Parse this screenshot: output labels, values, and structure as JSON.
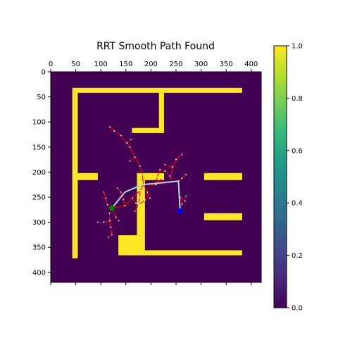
{
  "chart_data": {
    "type": "heatmap",
    "title": "RRT Smooth Path Found",
    "grid_size": [
      420,
      420
    ],
    "value_range": [
      0,
      1
    ],
    "colormap": "viridis",
    "colors": {
      "free": "#440154",
      "wall": "#fde725",
      "tree": "#ff0000",
      "node": "#ffffff",
      "path": "#add8e6",
      "start": "#008000",
      "goal": "#0000ff"
    },
    "x_ticks": [
      "0",
      "50",
      "100",
      "150",
      "200",
      "250",
      "300",
      "350",
      "400"
    ],
    "y_ticks": [
      "0",
      "50",
      "100",
      "150",
      "200",
      "250",
      "300",
      "350",
      "400"
    ],
    "colorbar_ticks": [
      "0.0",
      "0.2",
      "0.4",
      "0.6",
      "0.8",
      "1.0"
    ],
    "walls": [
      [
        43,
        32,
        382,
        42
      ],
      [
        43,
        42,
        54,
        372
      ],
      [
        54,
        202,
        94,
        216
      ],
      [
        162,
        112,
        226,
        122
      ],
      [
        216,
        42,
        226,
        122
      ],
      [
        172,
        202,
        226,
        216
      ],
      [
        172,
        216,
        188,
        326
      ],
      [
        135,
        326,
        188,
        366
      ],
      [
        188,
        356,
        382,
        366
      ],
      [
        306,
        202,
        382,
        216
      ],
      [
        306,
        282,
        382,
        296
      ]
    ],
    "tree_edges": [
      [
        [
          122,
          272
        ],
        [
          148,
          267
        ]
      ],
      [
        [
          148,
          267
        ],
        [
          163,
          252
        ]
      ],
      [
        [
          163,
          252
        ],
        [
          178,
          237
        ]
      ],
      [
        [
          178,
          237
        ],
        [
          185,
          225
        ]
      ],
      [
        [
          185,
          225
        ],
        [
          210,
          225
        ]
      ],
      [
        [
          210,
          225
        ],
        [
          238,
          220
        ]
      ],
      [
        [
          238,
          220
        ],
        [
          255,
          218
        ]
      ],
      [
        [
          255,
          218
        ],
        [
          262,
          212
        ]
      ],
      [
        [
          262,
          212
        ],
        [
          270,
          205
        ]
      ],
      [
        [
          255,
          218
        ],
        [
          258,
          250
        ]
      ],
      [
        [
          258,
          250
        ],
        [
          268,
          258
        ]
      ],
      [
        [
          268,
          258
        ],
        [
          270,
          248
        ]
      ],
      [
        [
          258,
          250
        ],
        [
          262,
          264
        ]
      ],
      [
        [
          262,
          264
        ],
        [
          258,
          278
        ]
      ],
      [
        [
          185,
          225
        ],
        [
          183,
          205
        ]
      ],
      [
        [
          183,
          205
        ],
        [
          178,
          188
        ]
      ],
      [
        [
          178,
          188
        ],
        [
          168,
          170
        ]
      ],
      [
        [
          168,
          170
        ],
        [
          158,
          150
        ]
      ],
      [
        [
          158,
          150
        ],
        [
          152,
          142
        ]
      ],
      [
        [
          152,
          142
        ],
        [
          140,
          127
        ]
      ],
      [
        [
          140,
          127
        ],
        [
          127,
          118
        ]
      ],
      [
        [
          127,
          118
        ],
        [
          118,
          110
        ]
      ],
      [
        [
          152,
          142
        ],
        [
          160,
          135
        ]
      ],
      [
        [
          168,
          170
        ],
        [
          158,
          178
        ]
      ],
      [
        [
          210,
          225
        ],
        [
          212,
          210
        ]
      ],
      [
        [
          212,
          210
        ],
        [
          218,
          195
        ]
      ],
      [
        [
          218,
          195
        ],
        [
          228,
          198
        ]
      ],
      [
        [
          228,
          198
        ],
        [
          238,
          208
        ]
      ],
      [
        [
          210,
          225
        ],
        [
          222,
          212
        ]
      ],
      [
        [
          148,
          267
        ],
        [
          145,
          255
        ]
      ],
      [
        [
          145,
          255
        ],
        [
          140,
          240
        ]
      ],
      [
        [
          140,
          240
        ],
        [
          133,
          232
        ]
      ],
      [
        [
          163,
          252
        ],
        [
          170,
          262
        ]
      ],
      [
        [
          170,
          262
        ],
        [
          175,
          268
        ]
      ],
      [
        [
          178,
          237
        ],
        [
          178,
          250
        ]
      ],
      [
        [
          178,
          250
        ],
        [
          175,
          262
        ]
      ],
      [
        [
          185,
          225
        ],
        [
          193,
          240
        ]
      ],
      [
        [
          193,
          240
        ],
        [
          198,
          252
        ]
      ],
      [
        [
          193,
          240
        ],
        [
          188,
          256
        ]
      ],
      [
        [
          188,
          256
        ],
        [
          176,
          264
        ]
      ],
      [
        [
          176,
          264
        ],
        [
          168,
          278
        ]
      ],
      [
        [
          122,
          272
        ],
        [
          113,
          265
        ]
      ],
      [
        [
          113,
          265
        ],
        [
          110,
          252
        ]
      ],
      [
        [
          110,
          252
        ],
        [
          106,
          240
        ]
      ],
      [
        [
          122,
          272
        ],
        [
          117,
          282
        ]
      ],
      [
        [
          117,
          282
        ],
        [
          118,
          297
        ]
      ],
      [
        [
          118,
          297
        ],
        [
          106,
          300
        ]
      ],
      [
        [
          106,
          300
        ],
        [
          94,
          300
        ]
      ],
      [
        [
          118,
          297
        ],
        [
          120,
          310
        ]
      ],
      [
        [
          120,
          310
        ],
        [
          122,
          325
        ]
      ],
      [
        [
          122,
          325
        ],
        [
          115,
          330
        ]
      ],
      [
        [
          122,
          272
        ],
        [
          130,
          290
        ]
      ],
      [
        [
          130,
          290
        ],
        [
          136,
          297
        ]
      ],
      [
        [
          238,
          220
        ],
        [
          243,
          190
        ]
      ],
      [
        [
          243,
          190
        ],
        [
          250,
          175
        ]
      ],
      [
        [
          250,
          175
        ],
        [
          262,
          165
        ]
      ],
      [
        [
          243,
          190
        ],
        [
          228,
          185
        ]
      ]
    ],
    "path": [
      [
        122,
        272
      ],
      [
        148,
        240
      ],
      [
        183,
        225
      ],
      [
        255,
        218
      ],
      [
        258,
        278
      ]
    ],
    "start": [
      122,
      272
    ],
    "goal": [
      258,
      278
    ]
  }
}
